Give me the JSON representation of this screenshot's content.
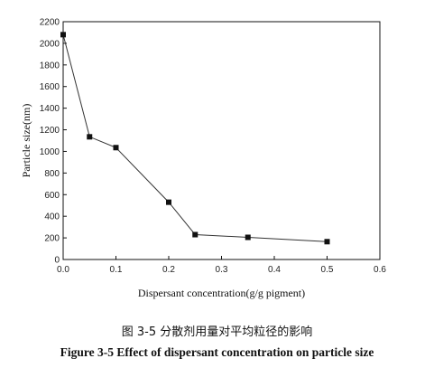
{
  "chart_data": {
    "type": "line",
    "title": "",
    "xlabel": "Dispersant concentration(g/g pigment)",
    "ylabel": "Particle size(nm)",
    "xlim": [
      0.0,
      0.6
    ],
    "ylim": [
      0,
      2200
    ],
    "xticks": [
      0.0,
      0.1,
      0.2,
      0.3,
      0.4,
      0.5,
      0.6
    ],
    "xtick_labels": [
      "0.0",
      "0.1",
      "0.2",
      "0.3",
      "0.4",
      "0.5",
      "0.6"
    ],
    "yticks": [
      0,
      200,
      400,
      600,
      800,
      1000,
      1200,
      1400,
      1600,
      1800,
      2000,
      2200
    ],
    "ytick_labels": [
      "0",
      "200",
      "400",
      "600",
      "800",
      "1000",
      "1200",
      "1400",
      "1600",
      "1800",
      "2000",
      "2200"
    ],
    "grid": false,
    "legend": "none",
    "marker": "square",
    "colors": {
      "line": "#333333",
      "marker": "#111111",
      "axis": "#111111"
    },
    "series": [
      {
        "x": [
          0.0,
          0.05,
          0.1,
          0.2,
          0.25,
          0.35,
          0.5
        ],
        "y": [
          2080,
          1135,
          1035,
          530,
          230,
          205,
          165
        ]
      }
    ]
  },
  "captions": {
    "cn": "图 3-5 分散剂用量对平均粒径的影响",
    "en": "Figure 3-5 Effect of dispersant concentration on particle size"
  }
}
